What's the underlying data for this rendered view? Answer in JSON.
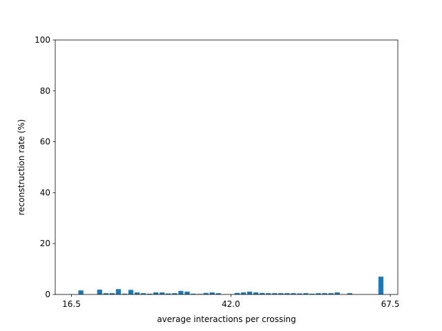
{
  "chart_data": {
    "type": "bar",
    "title": "",
    "xlabel": "average interactions per crossing",
    "ylabel": "reconstruction rate (%)",
    "xlim": [
      13.9,
      68.7
    ],
    "ylim": [
      0,
      100
    ],
    "x_ticks": [
      16.5,
      42.0,
      67.5
    ],
    "x_tick_labels": [
      "16.5",
      "42.0",
      "67.5"
    ],
    "y_ticks": [
      0,
      20,
      40,
      60,
      80,
      100
    ],
    "y_tick_labels": [
      "0",
      "20",
      "40",
      "60",
      "80",
      "100"
    ],
    "grid": false,
    "legend": "none",
    "bar_color": "#1f77b4",
    "bar_width": 0.8,
    "x": [
      18,
      21,
      22,
      23,
      24,
      25,
      26,
      27,
      28,
      29,
      30,
      31,
      32,
      33,
      34,
      35,
      36,
      37,
      38,
      39,
      40,
      41,
      43,
      44,
      45,
      46,
      47,
      48,
      49,
      50,
      51,
      52,
      53,
      54,
      55,
      56,
      57,
      58,
      59,
      61,
      66
    ],
    "values": [
      1.6,
      1.9,
      0.5,
      0.5,
      2.1,
      0.3,
      1.8,
      0.8,
      0.5,
      0.3,
      0.8,
      0.8,
      0.4,
      0.5,
      1.4,
      1.1,
      0.3,
      0.2,
      0.6,
      0.8,
      0.5,
      0.1,
      0.6,
      0.8,
      1.1,
      0.8,
      0.6,
      0.5,
      0.5,
      0.5,
      0.5,
      0.5,
      0.4,
      0.5,
      0.3,
      0.5,
      0.5,
      0.5,
      0.8,
      0.5,
      7.0
    ]
  }
}
